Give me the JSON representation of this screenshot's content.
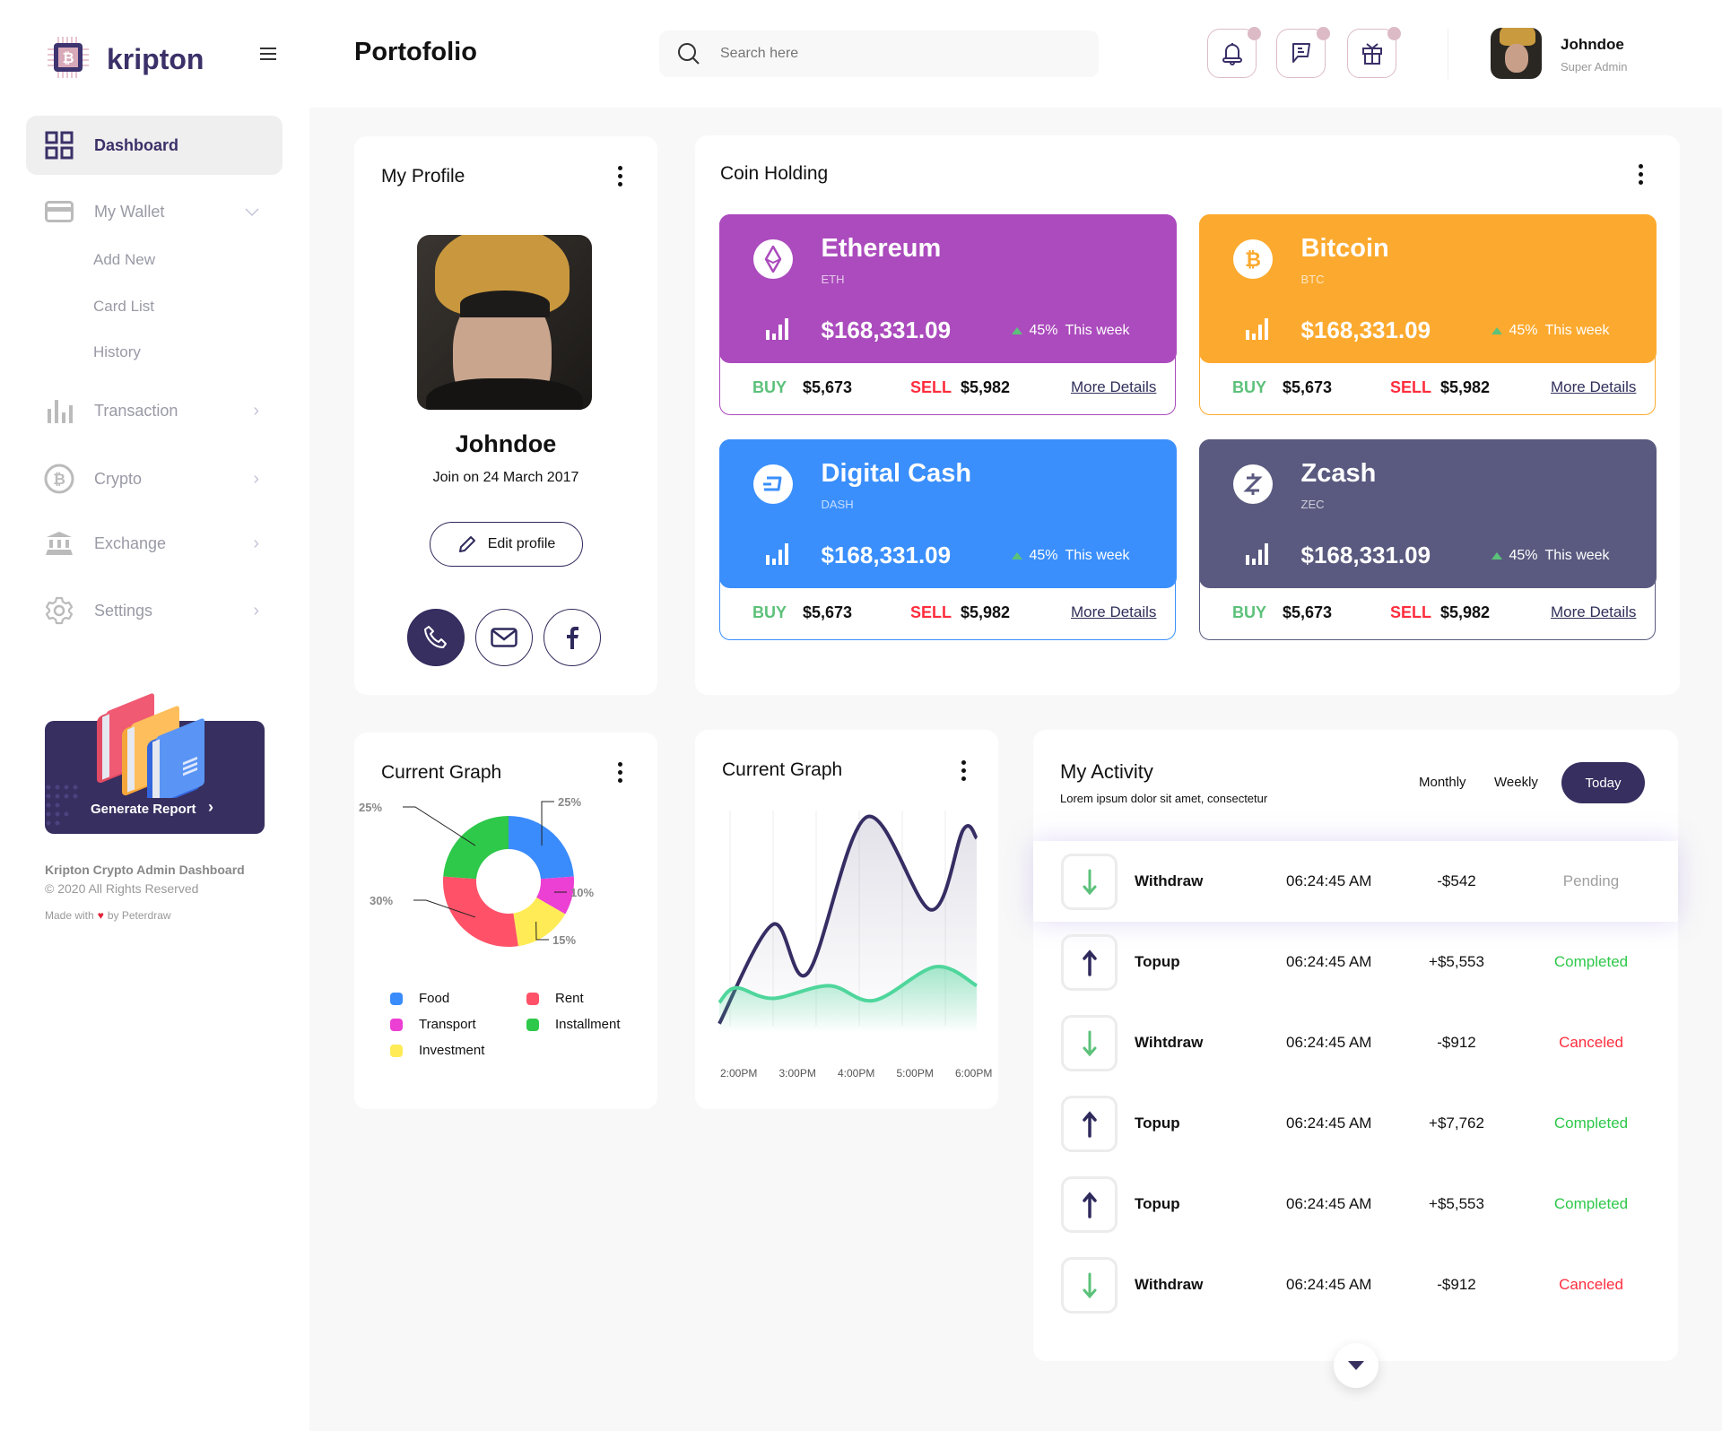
{
  "brand": {
    "name": "kripton",
    "color": "#3b3068"
  },
  "sidebar": {
    "items": [
      {
        "label": "Dashboard",
        "icon": "grid-icon",
        "active": true
      },
      {
        "label": "My Wallet",
        "icon": "card-icon",
        "expanded": true
      },
      {
        "label": "Transaction",
        "icon": "bar-chart-icon"
      },
      {
        "label": "Crypto",
        "icon": "bitcoin-icon"
      },
      {
        "label": "Exchange",
        "icon": "bank-icon"
      },
      {
        "label": "Settings",
        "icon": "gear-icon"
      }
    ],
    "wallet_sub": [
      "Add New",
      "Card List",
      "History"
    ],
    "report_button": "Generate Report",
    "footer": {
      "title": "Kripton Crypto Admin Dashboard",
      "copyright": "© 2020 All Rights Reserved",
      "made_prefix": "Made with",
      "made_suffix": "by Peterdraw"
    }
  },
  "header": {
    "title": "Portofolio",
    "search_placeholder": "Search here",
    "user": {
      "name": "Johndoe",
      "role": "Super Admin"
    }
  },
  "profile": {
    "title": "My Profile",
    "name": "Johndoe",
    "joined": "Join on 24 March 2017",
    "edit_label": "Edit profile"
  },
  "coins": {
    "title": "Coin Holding",
    "items": [
      {
        "name": "Ethereum",
        "ticker": "ETH",
        "price": "$168,331.09",
        "change": "45%",
        "period": "This week",
        "buy_label": "BUY",
        "buy": "$5,673",
        "sell_label": "SELL",
        "sell": "$5,982",
        "details": "More Details",
        "color": "#ab4bbd",
        "icon": "ethereum-icon"
      },
      {
        "name": "Bitcoin",
        "ticker": "BTC",
        "price": "$168,331.09",
        "change": "45%",
        "period": "This week",
        "buy_label": "BUY",
        "buy": "$5,673",
        "sell_label": "SELL",
        "sell": "$5,982",
        "details": "More Details",
        "color": "#fcaa2f",
        "icon": "bitcoin-icon"
      },
      {
        "name": "Digital Cash",
        "ticker": "DASH",
        "price": "$168,331.09",
        "change": "45%",
        "period": "This week",
        "buy_label": "BUY",
        "buy": "$5,673",
        "sell_label": "SELL",
        "sell": "$5,982",
        "details": "More Details",
        "color": "#3a8ffc",
        "icon": "dash-icon"
      },
      {
        "name": "Zcash",
        "ticker": "ZEC",
        "price": "$168,331.09",
        "change": "45%",
        "period": "This week",
        "buy_label": "BUY",
        "buy": "$5,673",
        "sell_label": "SELL",
        "sell": "$5,982",
        "details": "More Details",
        "color": "#5a5a80",
        "icon": "zcash-icon"
      }
    ]
  },
  "chart_data": [
    {
      "type": "pie",
      "title": "Current Graph",
      "donut": true,
      "categories": [
        "Food",
        "Transport",
        "Investment",
        "Rent",
        "Installment"
      ],
      "values": [
        25,
        10,
        15,
        30,
        25
      ],
      "labels": [
        "25%",
        "10%",
        "15%",
        "30%",
        "25%"
      ],
      "colors": [
        "#3a8bfc",
        "#ec3fd3",
        "#ffeb55",
        "#ff5268",
        "#2ec84a"
      ],
      "legend": "bottom"
    },
    {
      "type": "line",
      "title": "Current Graph",
      "xticks": [
        "2:00PM",
        "3:00PM",
        "4:00PM",
        "5:00PM",
        "6:00PM"
      ],
      "grid": "vertical",
      "yaxis": "hidden",
      "series": [
        {
          "color": "#352d63",
          "x": [
            13.69,
            14.6,
            15.2,
            16.2,
            17.3,
            17.85,
            18.08
          ],
          "values": [
            1,
            48,
            25,
            99,
            55,
            93,
            89
          ]
        },
        {
          "color": "#4fd69c",
          "x": [
            13.69,
            13.97,
            14.6,
            15.56,
            16.33,
            17.38,
            18.08
          ],
          "values": [
            11,
            18,
            13,
            19,
            12,
            28,
            19
          ]
        }
      ]
    }
  ],
  "activity": {
    "title": "My Activity",
    "subtitle": "Lorem ipsum dolor sit amet, consectetur",
    "filters": [
      "Monthly",
      "Weekly",
      "Today"
    ],
    "active_filter": "Today",
    "rows": [
      {
        "type": "Withdraw",
        "dir": "down",
        "time": "06:24:45 AM",
        "amount": "-$542",
        "status": "Pending",
        "status_color": "#a0a0a0"
      },
      {
        "type": "Topup",
        "dir": "up",
        "time": "06:24:45 AM",
        "amount": "+$5,553",
        "status": "Completed",
        "status_color": "#2ec84a"
      },
      {
        "type": "Wihtdraw",
        "dir": "down",
        "time": "06:24:45 AM",
        "amount": "-$912",
        "status": "Canceled",
        "status_color": "#ff2d3d"
      },
      {
        "type": "Topup",
        "dir": "up",
        "time": "06:24:45 AM",
        "amount": "+$7,762",
        "status": "Completed",
        "status_color": "#2ec84a"
      },
      {
        "type": "Topup",
        "dir": "up",
        "time": "06:24:45 AM",
        "amount": "+$5,553",
        "status": "Completed",
        "status_color": "#2ec84a"
      },
      {
        "type": "Withdraw",
        "dir": "down",
        "time": "06:24:45 AM",
        "amount": "-$912",
        "status": "Canceled",
        "status_color": "#ff2d3d"
      }
    ]
  }
}
